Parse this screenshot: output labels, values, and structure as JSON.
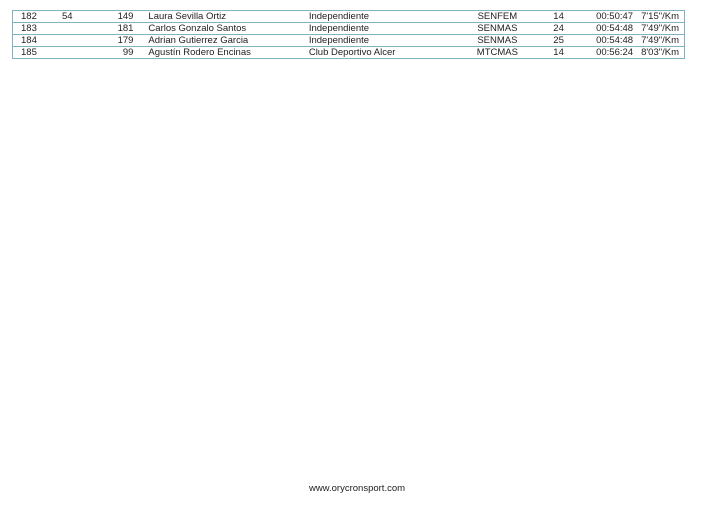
{
  "columns": [
    "position",
    "cat_position_extra",
    "bib",
    "name",
    "club",
    "category",
    "category_position",
    "time",
    "pace"
  ],
  "rows": [
    [
      "182",
      "54",
      "149",
      "Laura Sevilla Ortiz",
      "Independiente",
      "SENFEM",
      "14",
      "00:50:47",
      "7'15\"/Km"
    ],
    [
      "183",
      "",
      "181",
      "Carlos Gonzalo Santos",
      "Independiente",
      "SENMAS",
      "24",
      "00:54:48",
      "7'49\"/Km"
    ],
    [
      "184",
      "",
      "179",
      "Adrian Gutierrez Garcia",
      "Independiente",
      "SENMAS",
      "25",
      "00:54:48",
      "7'49\"/Km"
    ],
    [
      "185",
      "",
      "99",
      "Agustín Rodero Encinas",
      "Club Deportivo Alcer",
      "MTCMAS",
      "14",
      "00:56:24",
      "8'03\"/Km"
    ]
  ],
  "footer": {
    "url": "www.orycronsport.com"
  },
  "colors": {
    "border": "#7fb2c2"
  }
}
